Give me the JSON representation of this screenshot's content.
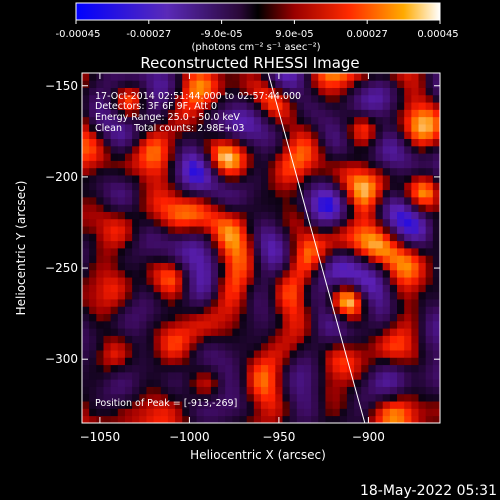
{
  "colorbar": {
    "tick_labels": [
      "-0.00045",
      "-0.00027",
      "-9.0e-05",
      "9.0e-05",
      "0.00027",
      "0.00045"
    ],
    "unit_label": "(photons cm⁻² s⁻¹ asec⁻²)",
    "range": [
      -0.00045,
      0.00045
    ]
  },
  "chart_data": {
    "type": "heatmap",
    "title": "Reconstructed RHESSI Image",
    "xlabel": "Heliocentric X (arcsec)",
    "ylabel": "Heliocentric Y (arcsec)",
    "xlim": [
      -1060,
      -860
    ],
    "ylim": [
      -335,
      -143
    ],
    "x_ticks": [
      -1050,
      -1000,
      -950,
      -900
    ],
    "y_ticks": [
      -150,
      -200,
      -250,
      -300
    ],
    "x_tick_labels": [
      "−1050",
      "−1000",
      "−950",
      "−900"
    ],
    "y_tick_labels": [
      "−150",
      "−200",
      "−250",
      "−300"
    ],
    "annotations": [
      "17-Oct-2014 02:51:44.000 to 02:57:44.000",
      "Detectors: 3F 6F 9F, Att 0",
      "Energy Range: 25.0 - 50.0 keV",
      "Clean    Total counts: 2.98E+03"
    ],
    "peak_label": "Position of Peak = [-913,-269]",
    "peak": {
      "x": -913,
      "y": -269
    },
    "limb_line": [
      [
        -956,
        -143
      ],
      [
        -902,
        -335
      ]
    ],
    "pixel_size_arcsec": 4,
    "colormap": [
      "#0000ff",
      "#5a1fb4",
      "#3a0a5a",
      "#000000",
      "#a00000",
      "#ff2000",
      "#ff9000",
      "#ffffff"
    ]
  },
  "footer": {
    "timestamp": "18-May-2022 05:31"
  }
}
